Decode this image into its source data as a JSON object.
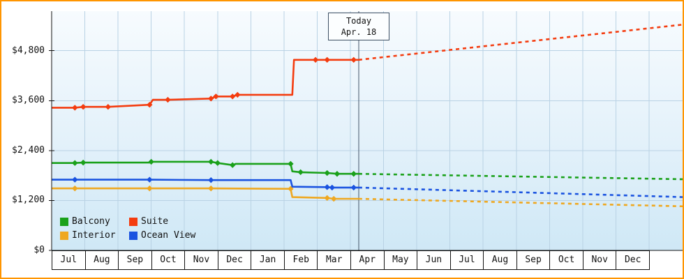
{
  "frame": {
    "border_color": "#ff9500"
  },
  "today_marker": {
    "line1": "Today",
    "line2": "Apr. 18",
    "month_x": 9.25
  },
  "y_axis": {
    "ticks": [
      {
        "value": 0,
        "label": "$0"
      },
      {
        "value": 1200,
        "label": "$1,200"
      },
      {
        "value": 2400,
        "label": "$2,400"
      },
      {
        "value": 3600,
        "label": "$3,600"
      },
      {
        "value": 4800,
        "label": "$4,800"
      }
    ]
  },
  "x_axis": {
    "months": [
      "Jul",
      "Aug",
      "Sep",
      "Oct",
      "Nov",
      "Dec",
      "Jan",
      "Feb",
      "Mar",
      "Apr",
      "May",
      "Jun",
      "Jul",
      "Aug",
      "Sep",
      "Oct",
      "Nov",
      "Dec"
    ]
  },
  "chart_data": {
    "type": "line",
    "title": "",
    "x_unit": "months since July (Jul = 0-1, fractional = position within month)",
    "x_categories": [
      "Jul",
      "Aug",
      "Sep",
      "Oct",
      "Nov",
      "Dec",
      "Jan",
      "Feb",
      "Mar",
      "Apr",
      "May",
      "Jun",
      "Jul",
      "Aug",
      "Sep",
      "Oct",
      "Nov",
      "Dec"
    ],
    "y_range": [
      0,
      5750
    ],
    "y_ticks": [
      0,
      1200,
      2400,
      3600,
      4800
    ],
    "grid": true,
    "legend_position": "bottom-left-inside",
    "today": {
      "label": "Today Apr. 18",
      "month_x": 9.25
    },
    "plot_bg_top": "#f7fbfe",
    "plot_bg_mid": "#e3f1fa",
    "plot_bg_bottom": "#cfe8f6",
    "grid_color": "#b9d2e4",
    "axis_color": "#111111",
    "today_line_color": "#45566a",
    "series": [
      {
        "name": "Balcony",
        "color": "#1aa11a",
        "history": [
          [
            0,
            2100
          ],
          [
            0.7,
            2100
          ],
          [
            0.95,
            2110
          ],
          [
            2.95,
            2110
          ],
          [
            3.0,
            2130
          ],
          [
            4.8,
            2130
          ],
          [
            5.0,
            2100
          ],
          [
            5.45,
            2050
          ],
          [
            5.55,
            2080
          ],
          [
            7.2,
            2080
          ],
          [
            7.25,
            1900
          ],
          [
            7.5,
            1880
          ],
          [
            8.3,
            1860
          ],
          [
            8.6,
            1840
          ],
          [
            9.25,
            1840
          ]
        ],
        "markers": [
          [
            0.7,
            2100
          ],
          [
            0.95,
            2110
          ],
          [
            3.0,
            2130
          ],
          [
            4.8,
            2130
          ],
          [
            5.0,
            2100
          ],
          [
            5.45,
            2050
          ],
          [
            7.2,
            2080
          ],
          [
            7.5,
            1880
          ],
          [
            8.3,
            1860
          ],
          [
            8.6,
            1840
          ],
          [
            9.1,
            1840
          ]
        ],
        "forecast": [
          [
            9.25,
            1840
          ],
          [
            19.05,
            1710
          ]
        ]
      },
      {
        "name": "Suite",
        "color": "#f43c0f",
        "history": [
          [
            0,
            3430
          ],
          [
            0.7,
            3430
          ],
          [
            0.95,
            3450
          ],
          [
            1.7,
            3450
          ],
          [
            2.95,
            3500
          ],
          [
            3.05,
            3620
          ],
          [
            3.5,
            3620
          ],
          [
            4.8,
            3650
          ],
          [
            4.95,
            3700
          ],
          [
            5.45,
            3700
          ],
          [
            5.6,
            3740
          ],
          [
            7.25,
            3740
          ],
          [
            7.3,
            4580
          ],
          [
            9.25,
            4580
          ]
        ],
        "markers": [
          [
            0.7,
            3430
          ],
          [
            0.95,
            3450
          ],
          [
            1.7,
            3450
          ],
          [
            2.95,
            3500
          ],
          [
            3.5,
            3620
          ],
          [
            4.8,
            3650
          ],
          [
            4.95,
            3700
          ],
          [
            5.45,
            3700
          ],
          [
            5.6,
            3740
          ],
          [
            7.95,
            4580
          ],
          [
            8.3,
            4580
          ],
          [
            9.1,
            4580
          ]
        ],
        "forecast": [
          [
            9.25,
            4580
          ],
          [
            19.05,
            5430
          ]
        ]
      },
      {
        "name": "Interior",
        "color": "#efa820",
        "history": [
          [
            0,
            1490
          ],
          [
            0.7,
            1490
          ],
          [
            2.95,
            1490
          ],
          [
            4.8,
            1490
          ],
          [
            7.2,
            1480
          ],
          [
            7.25,
            1280
          ],
          [
            8.3,
            1260
          ],
          [
            8.5,
            1240
          ],
          [
            9.25,
            1240
          ]
        ],
        "markers": [
          [
            0.7,
            1490
          ],
          [
            2.95,
            1490
          ],
          [
            4.8,
            1490
          ],
          [
            7.2,
            1480
          ],
          [
            8.3,
            1260
          ],
          [
            8.5,
            1240
          ]
        ],
        "forecast": [
          [
            9.25,
            1240
          ],
          [
            19.05,
            1060
          ]
        ]
      },
      {
        "name": "Ocean View",
        "color": "#1a53e0",
        "history": [
          [
            0,
            1700
          ],
          [
            0.7,
            1700
          ],
          [
            2.95,
            1700
          ],
          [
            4.8,
            1690
          ],
          [
            7.2,
            1690
          ],
          [
            7.25,
            1530
          ],
          [
            8.3,
            1520
          ],
          [
            8.45,
            1510
          ],
          [
            9.25,
            1510
          ]
        ],
        "markers": [
          [
            0.7,
            1700
          ],
          [
            2.95,
            1700
          ],
          [
            4.8,
            1690
          ],
          [
            8.3,
            1520
          ],
          [
            8.45,
            1510
          ],
          [
            9.1,
            1510
          ]
        ],
        "forecast": [
          [
            9.25,
            1510
          ],
          [
            19.05,
            1280
          ]
        ]
      }
    ]
  }
}
